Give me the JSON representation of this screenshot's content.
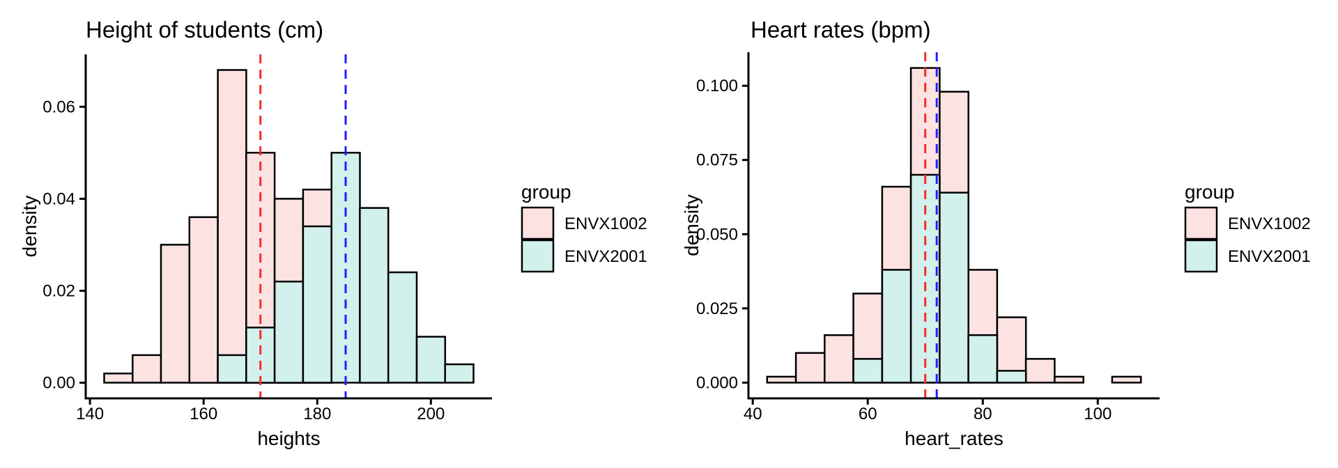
{
  "figure": {
    "background": "#ffffff",
    "axis_color": "#000000",
    "bar_outline_color": "#000000"
  },
  "chart_data": [
    {
      "id": "height-histogram",
      "type": "histogram",
      "title": "Height of students (cm)",
      "xlabel": "heights",
      "ylabel": "density",
      "bin_width": 5,
      "x_domain": [
        139.25,
        210.75
      ],
      "y_domain": [
        -0.0034,
        0.0714
      ],
      "x_ticks": [
        {
          "v": 140,
          "label": "140"
        },
        {
          "v": 160,
          "label": "160"
        },
        {
          "v": 180,
          "label": "180"
        },
        {
          "v": 200,
          "label": "200"
        }
      ],
      "y_ticks": [
        {
          "v": 0.0,
          "label": "0.00"
        },
        {
          "v": 0.02,
          "label": "0.02"
        },
        {
          "v": 0.04,
          "label": "0.04"
        },
        {
          "v": 0.06,
          "label": "0.06"
        }
      ],
      "legend_title": "group",
      "series": [
        {
          "name": "ENVX1002",
          "color": "#FDE2E2",
          "bins": [
            [
              142.5,
              0.002
            ],
            [
              147.5,
              0.006
            ],
            [
              152.5,
              0.03
            ],
            [
              157.5,
              0.036
            ],
            [
              162.5,
              0.068
            ],
            [
              167.5,
              0.05
            ],
            [
              172.5,
              0.04
            ],
            [
              177.5,
              0.042
            ]
          ]
        },
        {
          "name": "ENVX2001",
          "color": "#D2F0EC",
          "bins": [
            [
              162.5,
              0.006
            ],
            [
              167.5,
              0.012
            ],
            [
              172.5,
              0.022
            ],
            [
              177.5,
              0.034
            ],
            [
              182.5,
              0.05
            ],
            [
              187.5,
              0.038
            ],
            [
              192.5,
              0.024
            ],
            [
              197.5,
              0.01
            ],
            [
              202.5,
              0.004
            ]
          ]
        }
      ],
      "vlines": [
        {
          "x": 170,
          "color": "#F52B2B",
          "style": "dashed"
        },
        {
          "x": 185,
          "color": "#1F1FFF",
          "style": "dashed"
        }
      ]
    },
    {
      "id": "heart-rate-histogram",
      "type": "histogram",
      "title": "Heart rates (bpm)",
      "xlabel": "heart_rates",
      "ylabel": "density",
      "bin_width": 5,
      "x_domain": [
        39.25,
        110.75
      ],
      "y_domain": [
        -0.0053,
        0.1113
      ],
      "x_ticks": [
        {
          "v": 40,
          "label": "40"
        },
        {
          "v": 60,
          "label": "60"
        },
        {
          "v": 80,
          "label": "80"
        },
        {
          "v": 100,
          "label": "100"
        }
      ],
      "y_ticks": [
        {
          "v": 0.0,
          "label": "0.000"
        },
        {
          "v": 0.025,
          "label": "0.025"
        },
        {
          "v": 0.05,
          "label": "0.050"
        },
        {
          "v": 0.075,
          "label": "0.075"
        },
        {
          "v": 0.1,
          "label": "0.100"
        }
      ],
      "legend_title": "group",
      "series": [
        {
          "name": "ENVX1002",
          "color": "#FDE2E2",
          "bins": [
            [
              42.5,
              0.002
            ],
            [
              47.5,
              0.01
            ],
            [
              52.5,
              0.016
            ],
            [
              57.5,
              0.03
            ],
            [
              62.5,
              0.066
            ],
            [
              67.5,
              0.106
            ],
            [
              72.5,
              0.098
            ],
            [
              77.5,
              0.038
            ],
            [
              82.5,
              0.022
            ],
            [
              87.5,
              0.008
            ],
            [
              92.5,
              0.002
            ],
            [
              102.5,
              0.002
            ]
          ]
        },
        {
          "name": "ENVX2001",
          "color": "#D2F0EC",
          "bins": [
            [
              57.5,
              0.008
            ],
            [
              62.5,
              0.038
            ],
            [
              67.5,
              0.07
            ],
            [
              72.5,
              0.064
            ],
            [
              77.5,
              0.016
            ],
            [
              82.5,
              0.004
            ]
          ]
        }
      ],
      "vlines": [
        {
          "x": 70,
          "color": "#F52B2B",
          "style": "dashed"
        },
        {
          "x": 72,
          "color": "#1F1FFF",
          "style": "dashed"
        }
      ]
    }
  ]
}
